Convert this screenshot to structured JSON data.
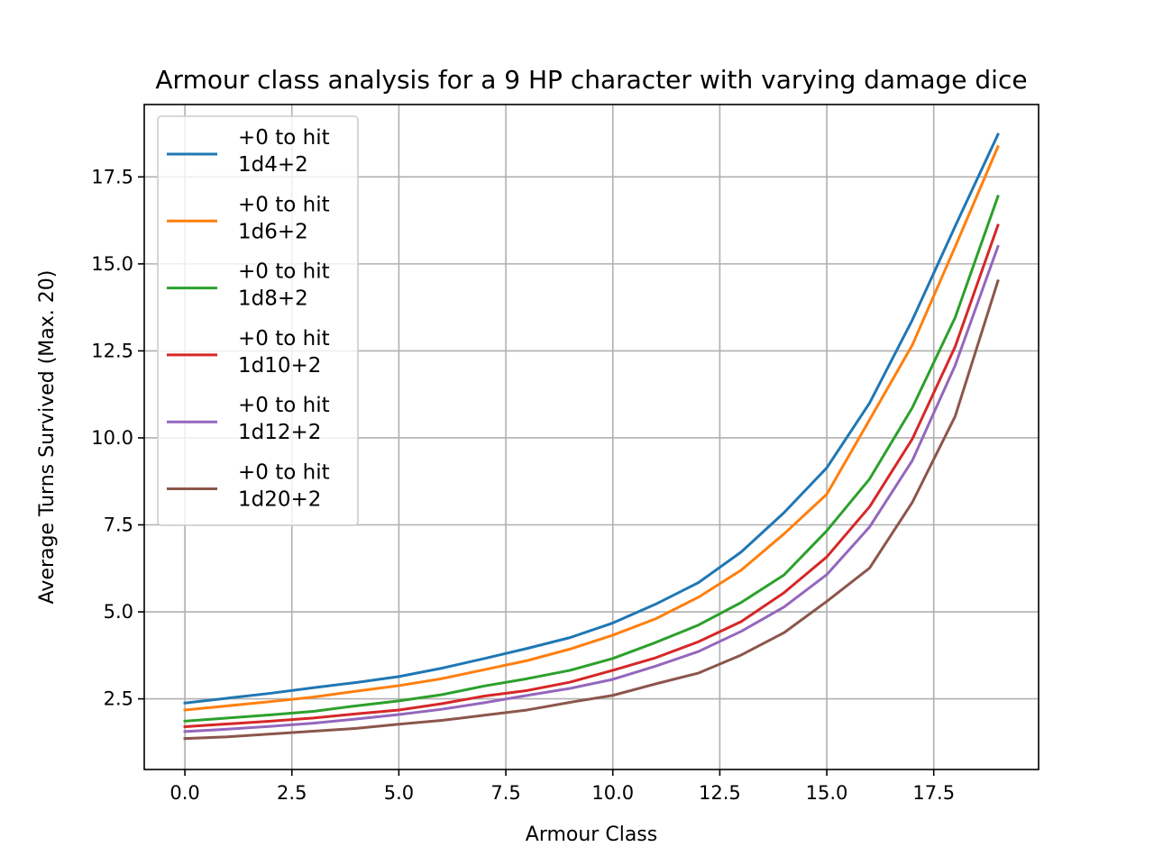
{
  "chart_data": {
    "type": "line",
    "title": "Armour class analysis for a 9 HP character with varying damage dice",
    "xlabel": "Armour Class",
    "ylabel": "Average Turns Survived (Max. 20)",
    "xlim": [
      -0.95,
      19.95
    ],
    "ylim": [
      0.47,
      19.58
    ],
    "xticks": [
      0.0,
      2.5,
      5.0,
      7.5,
      10.0,
      12.5,
      15.0,
      17.5
    ],
    "xtick_labels": [
      "0.0",
      "2.5",
      "5.0",
      "7.5",
      "10.0",
      "12.5",
      "15.0",
      "17.5"
    ],
    "yticks": [
      2.5,
      5.0,
      7.5,
      10.0,
      12.5,
      15.0,
      17.5
    ],
    "ytick_labels": [
      "2.5",
      "5.0",
      "7.5",
      "10.0",
      "12.5",
      "15.0",
      "17.5"
    ],
    "grid": true,
    "legend_position": "upper-left",
    "x": [
      0,
      1,
      2,
      3,
      4,
      5,
      6,
      7,
      8,
      9,
      10,
      11,
      12,
      13,
      14,
      15,
      16,
      17,
      18,
      19
    ],
    "series": [
      {
        "name": "+0 to hit\n1d4+2",
        "color": "#1f77b4",
        "values": [
          2.38,
          2.52,
          2.66,
          2.82,
          2.97,
          3.14,
          3.38,
          3.66,
          3.95,
          4.26,
          4.68,
          5.22,
          5.84,
          6.72,
          7.85,
          9.14,
          11.0,
          13.39,
          16.08,
          18.72
        ]
      },
      {
        "name": "+0 to hit\n1d6+2",
        "color": "#ff7f0e",
        "values": [
          2.18,
          2.3,
          2.42,
          2.55,
          2.72,
          2.88,
          3.08,
          3.34,
          3.6,
          3.93,
          4.33,
          4.8,
          5.42,
          6.2,
          7.24,
          8.38,
          10.52,
          12.67,
          15.49,
          18.37
        ]
      },
      {
        "name": "+0 to hit\n1d8+2",
        "color": "#2ca02c",
        "values": [
          1.86,
          1.95,
          2.04,
          2.14,
          2.3,
          2.44,
          2.62,
          2.87,
          3.08,
          3.32,
          3.66,
          4.12,
          4.62,
          5.27,
          6.06,
          7.33,
          8.82,
          10.87,
          13.46,
          16.94
        ]
      },
      {
        "name": "+0 to hit\n1d10+2",
        "color": "#d62728",
        "values": [
          1.7,
          1.78,
          1.86,
          1.95,
          2.07,
          2.18,
          2.36,
          2.58,
          2.74,
          2.98,
          3.32,
          3.68,
          4.14,
          4.72,
          5.55,
          6.58,
          8.02,
          9.97,
          12.62,
          16.11
        ]
      },
      {
        "name": "+0 to hit\n1d12+2",
        "color": "#9467bd",
        "values": [
          1.56,
          1.63,
          1.71,
          1.8,
          1.92,
          2.05,
          2.2,
          2.39,
          2.6,
          2.8,
          3.06,
          3.44,
          3.86,
          4.44,
          5.14,
          6.07,
          7.44,
          9.35,
          12.08,
          15.5
        ]
      },
      {
        "name": "+0 to hit\n1d20+2",
        "color": "#8c564b",
        "values": [
          1.36,
          1.41,
          1.49,
          1.57,
          1.65,
          1.77,
          1.88,
          2.03,
          2.18,
          2.4,
          2.6,
          2.93,
          3.24,
          3.76,
          4.4,
          5.3,
          6.26,
          8.15,
          10.62,
          14.51
        ]
      }
    ]
  }
}
